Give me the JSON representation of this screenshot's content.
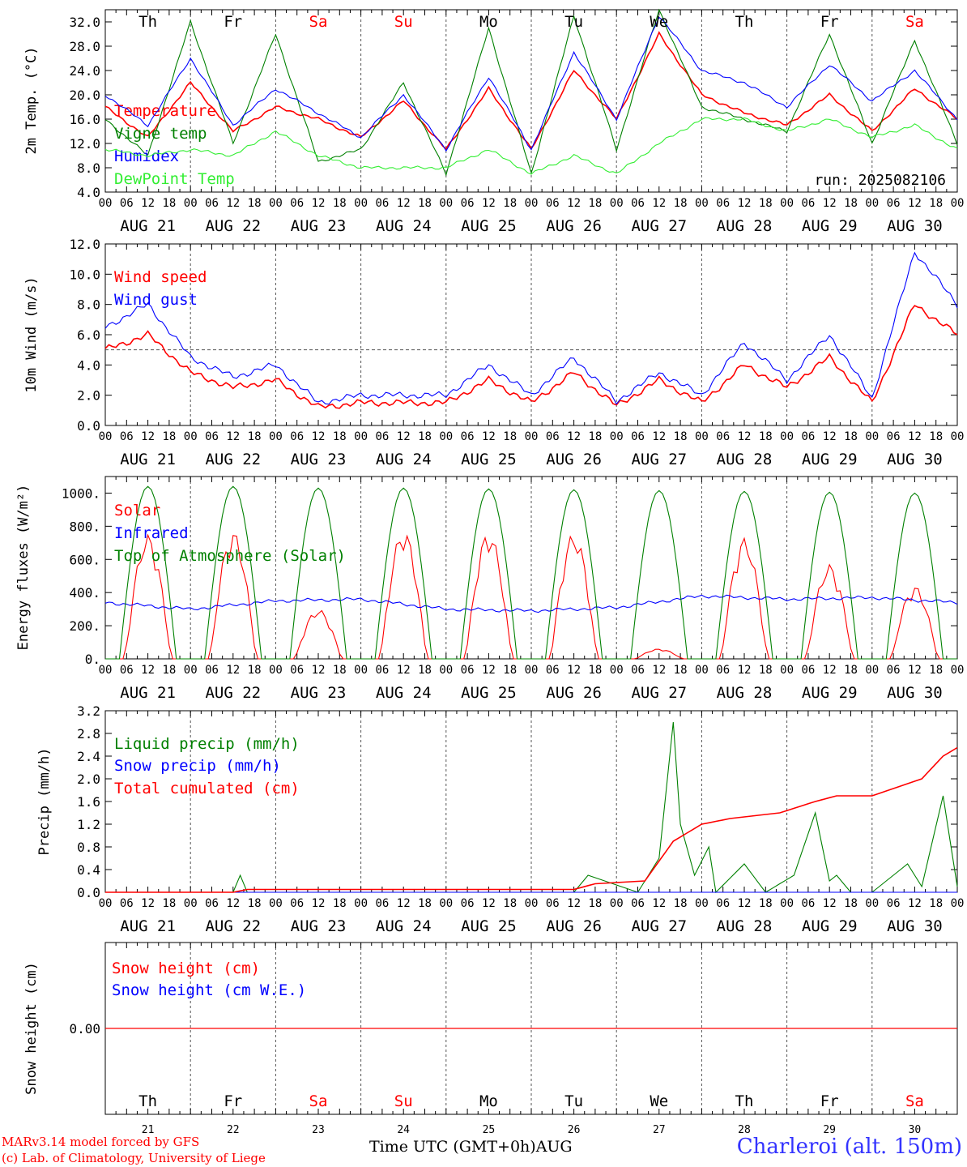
{
  "colors": {
    "red": "#ff0000",
    "green": "#008000",
    "blue": "#0000ff",
    "lightgreen": "#33ee33",
    "weekend": "#ff0000",
    "weekday": "#000000",
    "grid": "#555555"
  },
  "days": [
    {
      "date": "AUG 21",
      "dow": "Th",
      "num": "21",
      "weekend": false
    },
    {
      "date": "AUG 22",
      "dow": "Fr",
      "num": "22",
      "weekend": false
    },
    {
      "date": "AUG 23",
      "dow": "Sa",
      "num": "23",
      "weekend": true
    },
    {
      "date": "AUG 24",
      "dow": "Su",
      "num": "24",
      "weekend": true
    },
    {
      "date": "AUG 25",
      "dow": "Mo",
      "num": "25",
      "weekend": false
    },
    {
      "date": "AUG 26",
      "dow": "Tu",
      "num": "26",
      "weekend": false
    },
    {
      "date": "AUG 27",
      "dow": "We",
      "num": "27",
      "weekend": false
    },
    {
      "date": "AUG 28",
      "dow": "Th",
      "num": "28",
      "weekend": false
    },
    {
      "date": "AUG 29",
      "dow": "Fr",
      "num": "29",
      "weekend": false
    },
    {
      "date": "AUG 30",
      "dow": "Sa",
      "num": "30",
      "weekend": true
    }
  ],
  "hour_ticks": [
    "00",
    "06",
    "12",
    "18"
  ],
  "final_hour": "00",
  "run_label": "run: 2025082106",
  "footer": {
    "model": "MARv3.14 model forced by GFS",
    "lab": "(c) Lab. of Climatology, University of Liege",
    "xlabel": "Time UTC (GMT+0h)",
    "month": "AUG",
    "station": "Charleroi (alt. 150m)"
  },
  "chart_data": [
    {
      "type": "line",
      "ylabel": "2m Temp. (°C)",
      "ylim": [
        4,
        34
      ],
      "yticks": [
        "4.0",
        "8.0",
        "12.0",
        "16.0",
        "20.0",
        "24.0",
        "28.0",
        "32.0"
      ],
      "series": [
        {
          "name": "Temperature",
          "color": "red",
          "x_hours": [
            0,
            12,
            24,
            36,
            48,
            60,
            72,
            84,
            96,
            108,
            120,
            132,
            144,
            156,
            168,
            180,
            192,
            204,
            216,
            228,
            240
          ],
          "values": [
            18,
            13,
            22,
            14,
            18,
            16,
            13,
            19,
            11,
            21,
            11,
            24,
            16,
            30,
            20,
            17,
            15,
            20,
            14,
            21,
            16
          ]
        },
        {
          "name": "Vigne temp",
          "color": "green",
          "x_hours": [
            0,
            12,
            24,
            36,
            48,
            60,
            72,
            84,
            96,
            108,
            120,
            132,
            144,
            156,
            168,
            180,
            192,
            204,
            216,
            228,
            240
          ],
          "values": [
            16,
            10,
            32,
            12,
            30,
            9,
            11,
            22,
            7,
            31,
            7,
            33,
            11,
            34,
            18,
            16,
            14,
            30,
            12,
            29,
            12
          ]
        },
        {
          "name": "Humidex",
          "color": "blue",
          "x_hours": [
            0,
            12,
            24,
            36,
            48,
            60,
            72,
            84,
            96,
            108,
            120,
            132,
            144,
            156,
            168,
            180,
            192,
            204,
            216,
            228,
            240
          ],
          "values": [
            20,
            15,
            26,
            15,
            21,
            17,
            13,
            20,
            11,
            23,
            11,
            27,
            16,
            33,
            24,
            22,
            18,
            25,
            19,
            24,
            16
          ]
        },
        {
          "name": "DewPoint Temp",
          "color": "lightgreen",
          "x_hours": [
            0,
            12,
            24,
            36,
            48,
            60,
            72,
            84,
            96,
            108,
            120,
            132,
            144,
            156,
            168,
            180,
            192,
            204,
            216,
            228,
            240
          ],
          "values": [
            11,
            10,
            11,
            10,
            14,
            10,
            8,
            8,
            8,
            11,
            7,
            10,
            7,
            12,
            16,
            16,
            14,
            16,
            13,
            15,
            11
          ]
        }
      ]
    },
    {
      "type": "line",
      "ylabel": "10m Wind (m/s)",
      "ylim": [
        0,
        12
      ],
      "yticks": [
        "0.0",
        "2.0",
        "4.0",
        "6.0",
        "8.0",
        "10.0",
        "12.0"
      ],
      "reference_line": 5,
      "series": [
        {
          "name": "Wind speed",
          "color": "red",
          "x_hours": [
            0,
            12,
            24,
            36,
            48,
            60,
            72,
            84,
            96,
            108,
            120,
            132,
            144,
            156,
            168,
            180,
            192,
            204,
            216,
            228,
            240
          ],
          "values": [
            5,
            6,
            3.5,
            2.5,
            3,
            1.2,
            1.5,
            1.5,
            1.5,
            3,
            1.5,
            3.5,
            1.3,
            3,
            1.5,
            4,
            2.5,
            4.5,
            1.5,
            8,
            6
          ]
        },
        {
          "name": "Wind gust",
          "color": "blue",
          "x_hours": [
            0,
            12,
            24,
            36,
            48,
            60,
            72,
            84,
            96,
            108,
            120,
            132,
            144,
            156,
            168,
            180,
            192,
            204,
            216,
            228,
            240
          ],
          "values": [
            6.5,
            8,
            4.5,
            3.2,
            4,
            1.5,
            2,
            2,
            2,
            4,
            2,
            4.5,
            1.6,
            3.5,
            2,
            5.5,
            3,
            6,
            1.8,
            11.5,
            8
          ]
        }
      ]
    },
    {
      "type": "line",
      "ylabel": "Energy fluxes (W/m²)",
      "ylim": [
        0,
        1100
      ],
      "yticks": [
        "0.",
        "200.",
        "400.",
        "600.",
        "800.",
        "1000."
      ],
      "series": [
        {
          "name": "Solar",
          "color": "red",
          "daily_peak": [
            750,
            770,
            300,
            780,
            770,
            760,
            60,
            730,
            570,
            440
          ]
        },
        {
          "name": "Infrared",
          "color": "blue",
          "x_hours": [
            0,
            24,
            48,
            72,
            96,
            120,
            144,
            168,
            192,
            216,
            240
          ],
          "values": [
            340,
            300,
            350,
            360,
            300,
            290,
            310,
            380,
            360,
            370,
            340
          ]
        },
        {
          "name": "Top of Atmosphere (Solar)",
          "color": "green",
          "daily_peak": [
            1040,
            1040,
            1030,
            1030,
            1025,
            1020,
            1015,
            1010,
            1005,
            1000
          ]
        }
      ]
    },
    {
      "type": "line",
      "ylabel": "Precip (mm/h)",
      "ylim": [
        0,
        3.2
      ],
      "yticks": [
        "0.0",
        "0.4",
        "0.8",
        "1.2",
        "1.6",
        "2.0",
        "2.4",
        "2.8",
        "3.2"
      ],
      "series": [
        {
          "name": "Liquid precip (mm/h)",
          "color": "green",
          "x_hours": [
            0,
            36,
            38,
            40,
            132,
            136,
            150,
            156,
            160,
            162,
            166,
            170,
            172,
            180,
            186,
            194,
            200,
            204,
            206,
            210,
            216,
            226,
            230,
            236,
            240
          ],
          "values": [
            0,
            0,
            0.3,
            0,
            0,
            0.3,
            0,
            0.6,
            3.0,
            1.2,
            0.3,
            0.8,
            0,
            0.5,
            0,
            0.3,
            1.4,
            0.2,
            0.3,
            0,
            0,
            0.5,
            0.1,
            1.7,
            0.1
          ]
        },
        {
          "name": "Snow precip (mm/h)",
          "color": "blue",
          "x_hours": [
            0,
            240
          ],
          "values": [
            0,
            0
          ]
        },
        {
          "name": "Total cumulated (cm)",
          "color": "red",
          "x_hours": [
            0,
            36,
            40,
            132,
            138,
            152,
            160,
            168,
            176,
            190,
            200,
            206,
            216,
            230,
            236,
            240
          ],
          "values": [
            0,
            0,
            0.05,
            0.05,
            0.15,
            0.2,
            0.9,
            1.2,
            1.3,
            1.4,
            1.6,
            1.7,
            1.7,
            2.0,
            2.4,
            2.55
          ]
        }
      ]
    },
    {
      "type": "line",
      "ylabel": "Snow height (cm)",
      "yticks": [
        "0.00"
      ],
      "series": [
        {
          "name": "Snow height (cm)",
          "color": "red",
          "x_hours": [
            0,
            240
          ],
          "values": [
            0,
            0
          ]
        },
        {
          "name": "Snow height (cm W.E.)",
          "color": "blue",
          "x_hours": [
            0,
            240
          ],
          "values": [
            0,
            0
          ]
        }
      ]
    }
  ]
}
